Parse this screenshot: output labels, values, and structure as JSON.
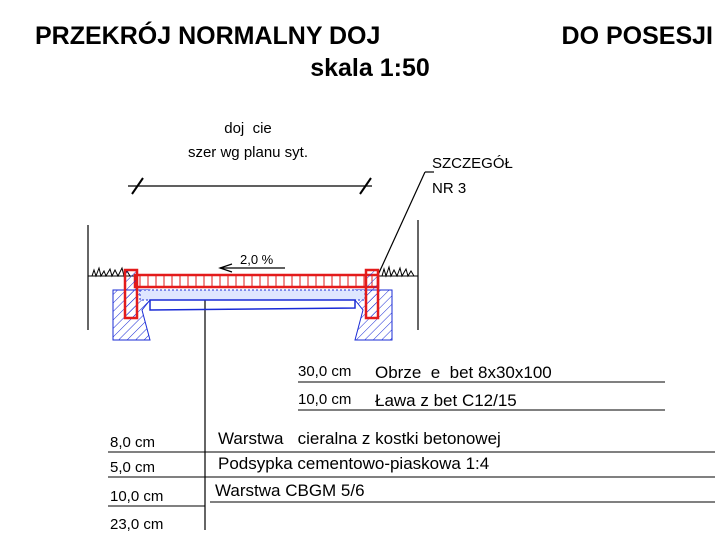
{
  "header": {
    "title_left": "PRZEKRÓJ NORMALNY DOJ",
    "title_right": "DO POSESJI",
    "subtitle": "skala 1:50"
  },
  "drawing": {
    "width_label_1": "doj  cie",
    "width_label_2": "szer wg planu syt.",
    "detail_1": "SZCZEGÓŁ",
    "detail_2": "NR 3",
    "slope": "2,0 %"
  },
  "curb_layers": [
    {
      "thickness": "30,0 cm",
      "name": "Obrze  e  bet 8x30x100"
    },
    {
      "thickness": "10,0 cm",
      "name": "Ława z bet C12/15"
    }
  ],
  "pavement_layers": [
    {
      "thickness": "8,0 cm",
      "name": "Warstwa   cieralna z kostki betonowej"
    },
    {
      "thickness": "5,0 cm",
      "name": "Podsypka cementowo-piaskowa 1:4"
    },
    {
      "thickness": "10,0 cm",
      "name": "Warstwa CBGM 5/6"
    }
  ],
  "total": "23,0 cm"
}
